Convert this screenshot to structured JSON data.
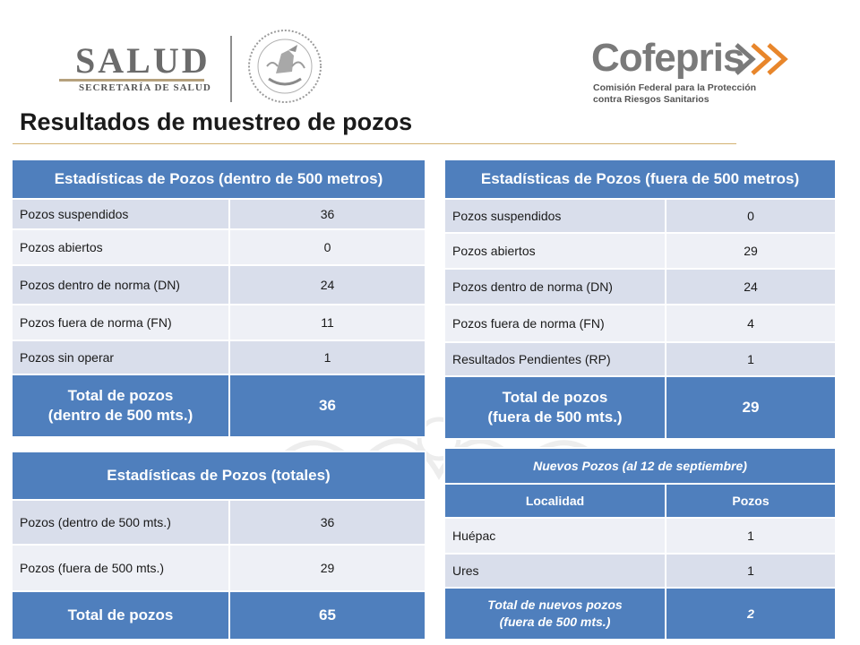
{
  "header": {
    "salud_word": "SALUD",
    "salud_sub": "SECRETARÍA DE SALUD",
    "cofepris_word": "Cofepris",
    "cofepris_line1": "Comisión Federal para la Protección",
    "cofepris_line2": "contra Riesgos Sanitarios",
    "title": "Resultados de muestreo de pozos"
  },
  "dentro": {
    "title": "Estadísticas de Pozos (dentro de 500 metros)",
    "rows": [
      {
        "label": "Pozos suspendidos",
        "value": "36"
      },
      {
        "label": "Pozos abiertos",
        "value": "0"
      },
      {
        "label": "Pozos dentro de norma (DN)",
        "value": "24"
      },
      {
        "label": "Pozos fuera de norma (FN)",
        "value": "11"
      },
      {
        "label": "Pozos sin operar",
        "value": "1"
      }
    ],
    "total_line1": "Total de pozos",
    "total_line2": "(dentro de 500 mts.)",
    "total_value": "36"
  },
  "fuera": {
    "title": "Estadísticas de Pozos (fuera de 500 metros)",
    "rows": [
      {
        "label": "Pozos suspendidos",
        "value": "0"
      },
      {
        "label": "Pozos abiertos",
        "value": "29"
      },
      {
        "label": "Pozos dentro de norma (DN)",
        "value": "24"
      },
      {
        "label": "Pozos fuera de norma (FN)",
        "value": "4"
      },
      {
        "label": "Resultados Pendientes (RP)",
        "value": "1"
      }
    ],
    "total_line1": "Total de pozos",
    "total_line2": "(fuera de 500 mts.)",
    "total_value": "29"
  },
  "totales": {
    "title": "Estadísticas de Pozos (totales)",
    "rows": [
      {
        "label": "Pozos (dentro de 500 mts.)",
        "value": "36"
      },
      {
        "label": "Pozos (fuera de 500 mts.)",
        "value": "29"
      }
    ],
    "total_label": "Total de pozos",
    "total_value": "65"
  },
  "nuevos": {
    "title": "Nuevos Pozos (al 12 de septiembre)",
    "col_localidad": "Localidad",
    "col_pozos": "Pozos",
    "rows": [
      {
        "label": "Huépac",
        "value": "1"
      },
      {
        "label": "Ures",
        "value": "1"
      }
    ],
    "total_line1": "Total de nuevos pozos",
    "total_line2": "(fuera de 500 mts.)",
    "total_value": "2"
  },
  "colors": {
    "header_blue": "#4f7fbd",
    "row_light": "#eef0f6",
    "row_dark": "#d9deeb",
    "title_rule": "#d3b271",
    "cofepris_orange": "#e8862b"
  },
  "icons": {
    "seal": "mexican-coat-of-arms-icon",
    "arrows": "cofepris-arrows-icon"
  }
}
